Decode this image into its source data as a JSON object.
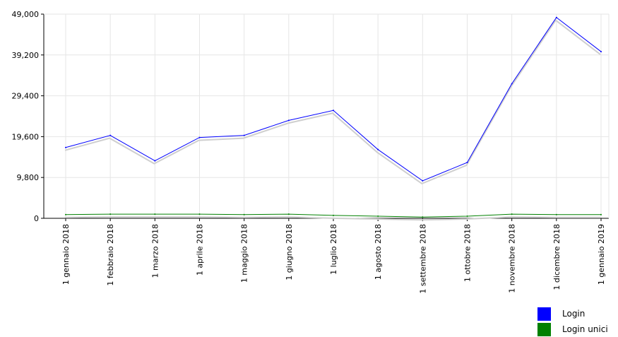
{
  "chart_data": {
    "type": "line",
    "categories": [
      "1 gennaio 2018",
      "1 febbraio 2018",
      "1 marzo 2018",
      "1 aprile 2018",
      "1 maggio 2018",
      "1 giugno 2018",
      "1 luglio 2018",
      "1 agosto 2018",
      "1 settembre 2018",
      "1 ottobre 2018",
      "1 novembre 2018",
      "1 dicembre 2018",
      "1 gennaio 2019"
    ],
    "series": [
      {
        "name": "Login",
        "color": "#0000ff",
        "values": [
          17000,
          19900,
          13800,
          19400,
          19900,
          23500,
          25900,
          16500,
          9000,
          13400,
          32300,
          48200,
          40000
        ]
      },
      {
        "name": "Login unici",
        "color": "#008000",
        "values": [
          900,
          1000,
          1000,
          1000,
          900,
          1000,
          700,
          500,
          300,
          500,
          1000,
          900,
          900
        ]
      }
    ],
    "yticks": [
      "49,000",
      "39,200",
      "29,400",
      "19,600",
      "9,800",
      "0"
    ],
    "ylim": [
      0,
      49000
    ],
    "grid": true,
    "legend_position": "bottom-right",
    "title": "",
    "xlabel": "",
    "ylabel": ""
  }
}
